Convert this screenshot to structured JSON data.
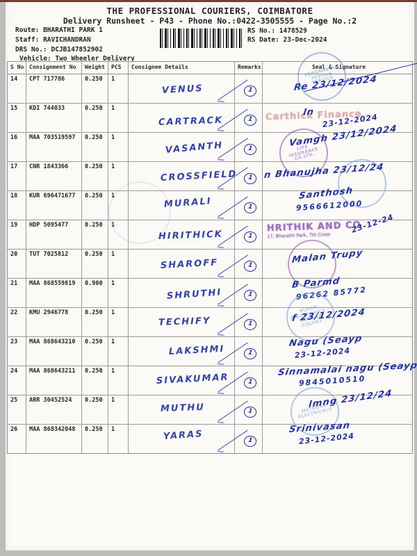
{
  "colors": {
    "ink": "#2132a6",
    "stamp_blue": "#5b8fd4",
    "stamp_blue2": "#6fa0dd",
    "stamp_purple": "#8a4fb5",
    "stamp_red": "#c9706e",
    "paper": "#fbfaf7"
  },
  "header": {
    "title": "THE PROFESSIONAL COURIERS, COIMBATORE",
    "subtitle": "Delivery Runsheet - P43 - Phone No.:0422-3505555 - Page No.:2",
    "route_label": "Route:",
    "route": "BHARATHI PARK 1",
    "staff_label": "Staff:",
    "staff": "RAVICHANDRAN",
    "drs_label": "DRS No.:",
    "drs": "DCJB147852902",
    "vehicle_label": "Vehicle:",
    "vehicle": "Two Wheeler Delivery",
    "rs_no_label": "RS No.:",
    "rs_no": "1478529",
    "rs_date_label": "RS Date:",
    "rs_date": "23-Dec-2024"
  },
  "table": {
    "headers": [
      "S No",
      "Consignment No",
      "Weight",
      "PCS",
      "Consignee Details",
      "Remarks",
      "Seal & Signature"
    ],
    "rows": [
      {
        "s_no": "14",
        "consignment_no": "CPT 717786",
        "weight": "0.250",
        "pcs": "1",
        "consignee": "VENUS",
        "remark": "1",
        "seal": {
          "stamp": {
            "shape": "circle",
            "color": "stamp_blue",
            "text": "VENGAMEDU TEXTILE SERVICE"
          },
          "lines": [
            {
              "t": "Re 23/12/2024",
              "c": "sig"
            }
          ]
        }
      },
      {
        "s_no": "15",
        "consignment_no": "KDI 744033",
        "weight": "0.250",
        "pcs": "1",
        "consignee": "CARTRACK",
        "remark": "1",
        "seal": {
          "stamp": {
            "shape": "text",
            "color": "stamp_red",
            "text": "Carthick Finance"
          },
          "lines": [
            {
              "t": "ln",
              "c": "sig"
            },
            {
              "t": "23-12-2024",
              "c": "date"
            }
          ]
        }
      },
      {
        "s_no": "16",
        "consignment_no": "MAA 703519597",
        "weight": "0.250",
        "pcs": "1",
        "consignee": "VASANTH",
        "remark": "1",
        "seal": {
          "stamp": {
            "shape": "circle",
            "color": "stamp_purple",
            "text": "LIFE INSURANCE CO.LTD."
          },
          "lines": [
            {
              "t": "Vamgh 23/12/2024",
              "c": "sig"
            }
          ]
        }
      },
      {
        "s_no": "17",
        "consignment_no": "CNR 1843366",
        "weight": "0.250",
        "pcs": "1",
        "consignee": "CROSSFIELD",
        "remark": "1",
        "seal": {
          "stamp": {
            "shape": "circle",
            "color": "stamp_blue2",
            "text": ""
          },
          "lines": [
            {
              "t": "n  Bhanujha 23/12/24",
              "c": "sig"
            }
          ]
        }
      },
      {
        "s_no": "18",
        "consignment_no": "KUR 696471677",
        "weight": "0.250",
        "pcs": "1",
        "consignee": "MURALI",
        "remark": "1",
        "seal": {
          "stamp": null,
          "lines": [
            {
              "t": "Santhosh",
              "c": "sig"
            },
            {
              "t": "9566612000",
              "c": "phone"
            }
          ]
        }
      },
      {
        "s_no": "19",
        "consignment_no": "HDP 5095477",
        "weight": "0.250",
        "pcs": "1",
        "consignee": "HIRITHICK",
        "remark": "1",
        "seal": {
          "stamp": {
            "shape": "text2",
            "color": "stamp_purple",
            "text": "HRITHIK AND CO",
            "sub": "17, Bharathi Park, 7th Cross"
          },
          "lines": [
            {
              "t": "23-12-24",
              "c": "date"
            }
          ]
        }
      },
      {
        "s_no": "20",
        "consignment_no": "TUT 7025812",
        "weight": "0.250",
        "pcs": "1",
        "consignee": "SHAROFF",
        "remark": "1",
        "seal": {
          "stamp": {
            "shape": "circle",
            "color": "stamp_purple",
            "text": ""
          },
          "lines": [
            {
              "t": "Malan Trupy",
              "c": "sig"
            }
          ]
        }
      },
      {
        "s_no": "21",
        "consignment_no": "MAA 868559819",
        "weight": "0.900",
        "pcs": "1",
        "consignee": "SHRUTHI",
        "remark": "1",
        "seal": {
          "stamp": null,
          "lines": [
            {
              "t": "B Parmd",
              "c": "sig"
            },
            {
              "t": "96262 85772",
              "c": "phone"
            }
          ]
        }
      },
      {
        "s_no": "22",
        "consignment_no": "KMU 2946778",
        "weight": "0.250",
        "pcs": "1",
        "consignee": "TECHIFY",
        "remark": "1",
        "seal": {
          "stamp": {
            "shape": "circle",
            "color": "stamp_blue2",
            "text": "BLOOM ELECTRONICS",
            "sub": "Saibaba Colony"
          },
          "lines": [
            {
              "t": "f 23/12/2024",
              "c": "sig"
            }
          ]
        }
      },
      {
        "s_no": "23",
        "consignment_no": "MAA 868643210",
        "weight": "0.250",
        "pcs": "1",
        "consignee": "LAKSHMI",
        "remark": "1",
        "seal": {
          "stamp": null,
          "lines": [
            {
              "t": "Nagu (Seayp",
              "c": "sig"
            },
            {
              "t": "23-12-2024",
              "c": "date"
            }
          ]
        }
      },
      {
        "s_no": "24",
        "consignment_no": "MAA 868643211",
        "weight": "0.250",
        "pcs": "1",
        "consignee": "SIVAKUMAR",
        "remark": "1",
        "seal": {
          "stamp": null,
          "lines": [
            {
              "t": "Sinnamalai nagu (Seayp",
              "c": "sig"
            },
            {
              "t": "9845010510",
              "c": "phone"
            }
          ]
        }
      },
      {
        "s_no": "25",
        "consignment_no": "ARR 30452524",
        "weight": "0.250",
        "pcs": "1",
        "consignee": "MUTHU",
        "remark": "1",
        "seal": {
          "stamp": {
            "shape": "circle",
            "color": "stamp_blue2",
            "text": "MATHURA ELECTRICALS"
          },
          "lines": [
            {
              "t": "lmng 23/12/24",
              "c": "sig"
            }
          ]
        }
      },
      {
        "s_no": "26",
        "consignment_no": "MAA 868342048",
        "weight": "0.250",
        "pcs": "1",
        "consignee": "YARAS",
        "remark": "1",
        "seal": {
          "stamp": null,
          "lines": [
            {
              "t": "Srinivasan",
              "c": "sig"
            },
            {
              "t": "23-12-2024",
              "c": "date"
            }
          ]
        }
      }
    ]
  }
}
